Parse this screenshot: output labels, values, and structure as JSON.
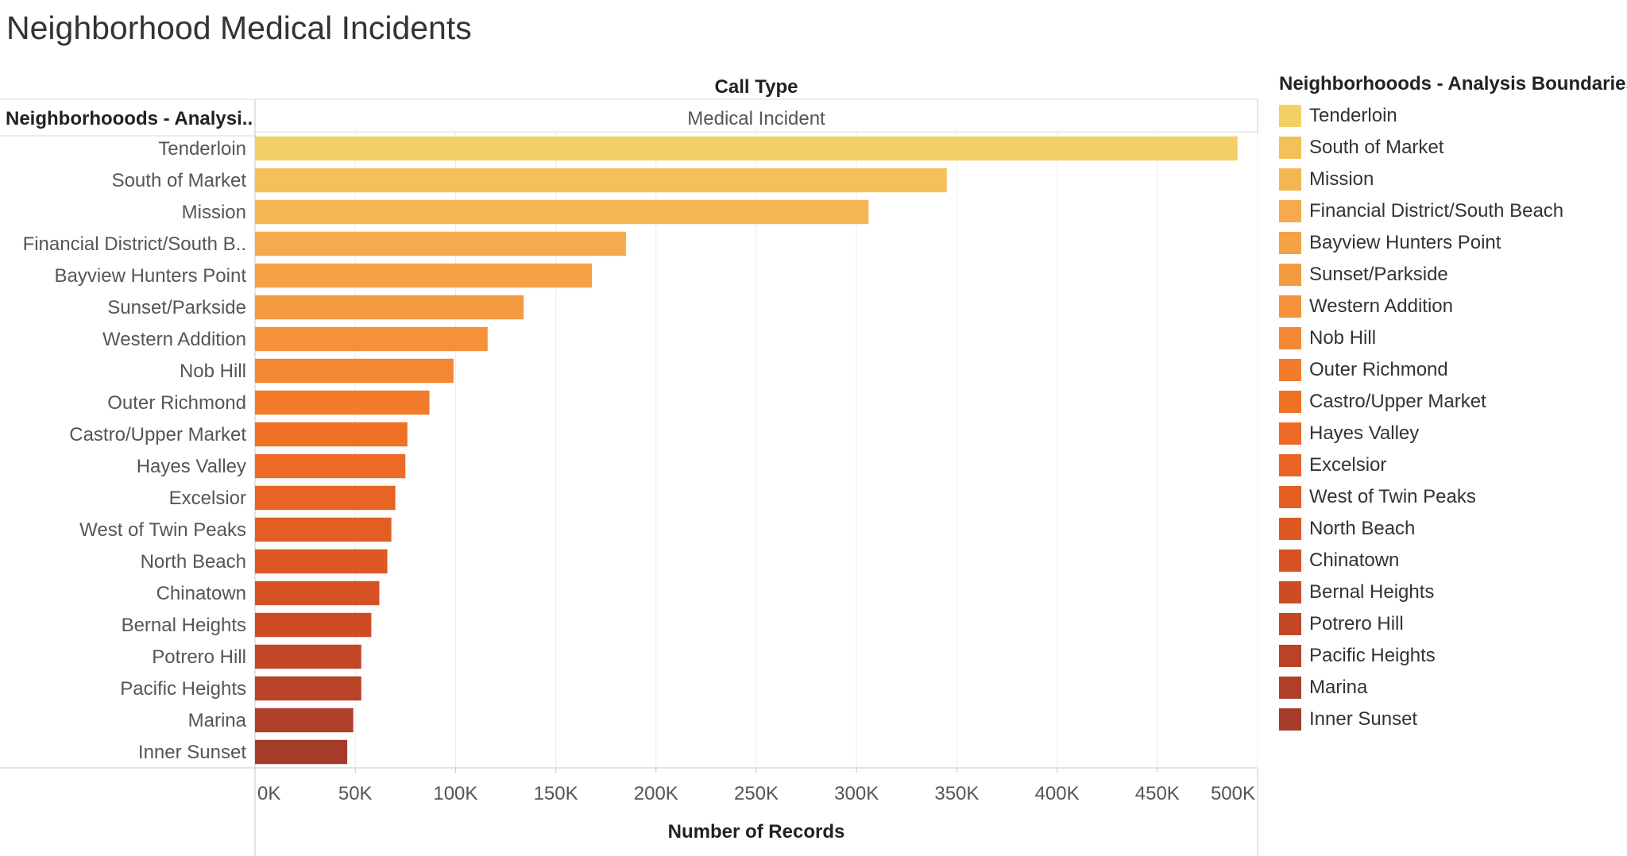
{
  "title": "Neighborhood Medical Incidents",
  "row_header": "Neighborhooods - Analysi..",
  "column_header": "Call Type",
  "column_value": "Medical Incident",
  "legend": {
    "title": "Neighborhooods - Analysis Boundaries",
    "position": "right"
  },
  "chart_data": {
    "type": "bar",
    "orientation": "horizontal",
    "title": "Neighborhood Medical Incidents",
    "xlabel": "Number of Records",
    "ylabel": "Neighborhooods - Analysi..",
    "xlim": [
      0,
      500000
    ],
    "x_ticks": [
      "0K",
      "50K",
      "100K",
      "150K",
      "200K",
      "250K",
      "300K",
      "350K",
      "400K",
      "450K",
      "500K"
    ],
    "grid": true,
    "categories": [
      "Tenderloin",
      "South of Market",
      "Mission",
      "Financial District/South Beach",
      "Bayview Hunters Point",
      "Sunset/Parkside",
      "Western Addition",
      "Nob Hill",
      "Outer Richmond",
      "Castro/Upper Market",
      "Hayes Valley",
      "Excelsior",
      "West of Twin Peaks",
      "North Beach",
      "Chinatown",
      "Bernal Heights",
      "Potrero Hill",
      "Pacific Heights",
      "Marina",
      "Inner Sunset"
    ],
    "axis_labels": [
      "Tenderloin",
      "South of Market",
      "Mission",
      "Financial District/South B..",
      "Bayview Hunters Point",
      "Sunset/Parkside",
      "Western Addition",
      "Nob Hill",
      "Outer Richmond",
      "Castro/Upper Market",
      "Hayes Valley",
      "Excelsior",
      "West of Twin Peaks",
      "North Beach",
      "Chinatown",
      "Bernal Heights",
      "Potrero Hill",
      "Pacific Heights",
      "Marina",
      "Inner Sunset"
    ],
    "values": [
      490000,
      345000,
      306000,
      185000,
      168000,
      134000,
      116000,
      99000,
      87000,
      76000,
      75000,
      70000,
      68000,
      66000,
      62000,
      58000,
      53000,
      53000,
      49000,
      46000
    ],
    "colors": [
      "#f2d066",
      "#f3c05a",
      "#f4b553",
      "#f5aa4d",
      "#f5a246",
      "#f49a41",
      "#f4913a",
      "#f38733",
      "#f27c2c",
      "#f07126",
      "#ed6b24",
      "#e86424",
      "#e45e24",
      "#de5824",
      "#d65225",
      "#cd4c26",
      "#c34727",
      "#b84327",
      "#ae3f28",
      "#a43c29"
    ]
  }
}
